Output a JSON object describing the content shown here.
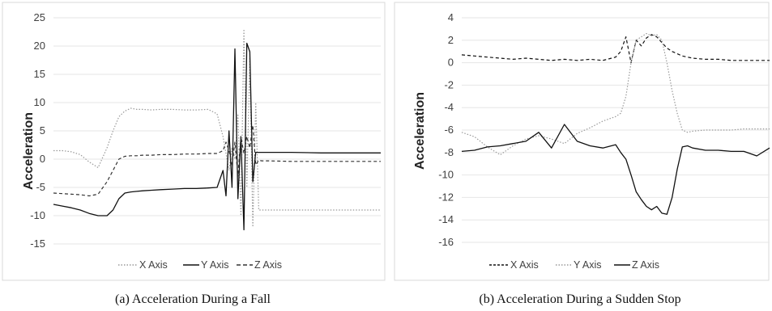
{
  "chart_data": [
    {
      "type": "line",
      "caption": "(a) Acceleration During a Fall",
      "ylabel": "Acceleration",
      "xlabel": "",
      "ylim": [
        -15,
        25
      ],
      "yticks": [
        25,
        20,
        15,
        10,
        5,
        0,
        -5,
        -10,
        -15
      ],
      "grid": true,
      "legend_position": "bottom",
      "legend": [
        "X Axis",
        "Y Axis",
        "Z Axis"
      ],
      "x": [
        0,
        3,
        6,
        9,
        12,
        15,
        18,
        20,
        22,
        24,
        26,
        28,
        30,
        33,
        36,
        40,
        44,
        48,
        52,
        55,
        57,
        58,
        59,
        60,
        61,
        62,
        63,
        64,
        65,
        66,
        67,
        68,
        69,
        70,
        71,
        72,
        80,
        90,
        100,
        110
      ],
      "series": [
        {
          "name": "X Axis",
          "style": "dotted",
          "color": "#999999",
          "values": [
            1.5,
            1.5,
            1.3,
            0.8,
            -0.5,
            -1.5,
            2,
            5,
            7.5,
            8.5,
            9,
            8.8,
            8.8,
            8.7,
            8.8,
            8.8,
            8.7,
            8.7,
            8.8,
            8,
            4,
            1,
            -2,
            2,
            0,
            8,
            -10,
            23,
            -5,
            18,
            -12,
            10,
            -9,
            -9,
            -9,
            -9,
            -9,
            -9,
            -9,
            -9
          ]
        },
        {
          "name": "Y Axis",
          "style": "solid",
          "color": "#111111",
          "values": [
            -8,
            -8.3,
            -8.6,
            -9,
            -9.6,
            -10,
            -10,
            -9,
            -7,
            -6,
            -5.8,
            -5.7,
            -5.6,
            -5.5,
            -5.4,
            -5.3,
            -5.2,
            -5.2,
            -5.1,
            -5,
            -2,
            -6.5,
            5,
            -5,
            19.5,
            -7,
            4,
            -12.5,
            20.5,
            19,
            -4,
            1.2,
            1.2,
            1.2,
            1.2,
            1.2,
            1.2,
            1.1,
            1.1,
            1.1
          ]
        },
        {
          "name": "Z Axis",
          "style": "dashed",
          "color": "#333333",
          "values": [
            -6,
            -6.1,
            -6.2,
            -6.3,
            -6.5,
            -6.2,
            -4,
            -2,
            0,
            0.5,
            0.6,
            0.6,
            0.7,
            0.7,
            0.8,
            0.8,
            0.9,
            0.9,
            1,
            1,
            1.5,
            3,
            1.5,
            -1,
            3,
            -3,
            4,
            1,
            4,
            2,
            6,
            -1,
            -0.2,
            -0.3,
            -0.3,
            -0.3,
            -0.4,
            -0.4,
            -0.4,
            -0.4
          ]
        }
      ]
    },
    {
      "type": "line",
      "caption": "(b) Acceleration During a Sudden Stop",
      "ylabel": "Acceleration",
      "xlabel": "",
      "ylim": [
        -16,
        4
      ],
      "yticks": [
        4,
        2,
        0,
        -2,
        -4,
        -6,
        -8,
        -10,
        -12,
        -14,
        -16
      ],
      "grid": true,
      "legend_position": "bottom",
      "legend": [
        "X Axis",
        "Y Axis",
        "Z Axis"
      ],
      "x": [
        0,
        5,
        10,
        15,
        20,
        25,
        30,
        35,
        40,
        45,
        50,
        55,
        60,
        62,
        64,
        66,
        68,
        70,
        72,
        74,
        76,
        78,
        80,
        82,
        84,
        86,
        88,
        90,
        95,
        100,
        105,
        110,
        115,
        120
      ],
      "series": [
        {
          "name": "X Axis",
          "style": "dashed",
          "color": "#111111",
          "values": [
            0.7,
            0.6,
            0.5,
            0.4,
            0.3,
            0.4,
            0.3,
            0.2,
            0.3,
            0.2,
            0.3,
            0.2,
            0.5,
            1,
            2.3,
            0,
            2,
            1.5,
            2.2,
            2.5,
            2.3,
            1.8,
            1.3,
            1,
            0.8,
            0.6,
            0.5,
            0.4,
            0.3,
            0.3,
            0.2,
            0.2,
            0.2,
            0.2
          ]
        },
        {
          "name": "Y Axis",
          "style": "dotted",
          "color": "#999999",
          "values": [
            -6.2,
            -6.6,
            -7.5,
            -8.2,
            -7.4,
            -6.8,
            -6.5,
            -6.8,
            -7.2,
            -6.3,
            -5.8,
            -5.2,
            -4.8,
            -4.5,
            -3,
            0,
            2,
            2.3,
            2.6,
            2.4,
            2.5,
            2,
            0,
            -2.5,
            -4.5,
            -6,
            -6.2,
            -6.1,
            -6,
            -6,
            -6,
            -5.9,
            -5.9,
            -5.9
          ]
        },
        {
          "name": "Z Axis",
          "style": "solid",
          "color": "#111111",
          "values": [
            -7.9,
            -7.8,
            -7.5,
            -7.4,
            -7.2,
            -7.0,
            -6.2,
            -7.6,
            -5.5,
            -7.0,
            -7.4,
            -7.6,
            -7.3,
            -8,
            -8.6,
            -10,
            -11.5,
            -12.2,
            -12.8,
            -13.1,
            -12.8,
            -13.4,
            -13.5,
            -12,
            -9.5,
            -7.5,
            -7.4,
            -7.6,
            -7.8,
            -7.8,
            -7.9,
            -7.9,
            -8.3,
            -7.6
          ]
        }
      ]
    }
  ]
}
